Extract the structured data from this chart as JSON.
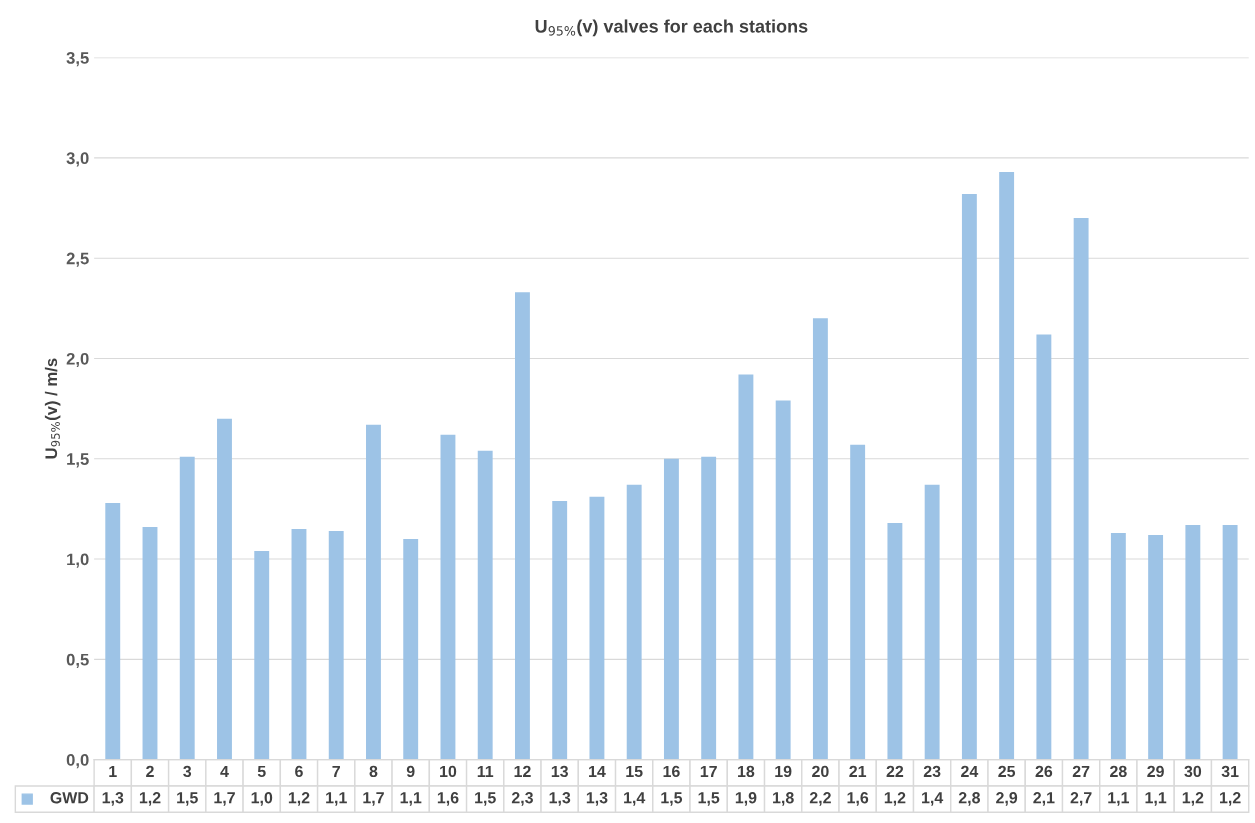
{
  "chart_data": {
    "type": "bar",
    "title": "U$_{95%}$(v) valves for each stations",
    "ylabel": "U$_{95%}$(v) / m/s",
    "categories": [
      "1",
      "2",
      "3",
      "4",
      "5",
      "6",
      "7",
      "8",
      "9",
      "10",
      "11",
      "12",
      "13",
      "14",
      "15",
      "16",
      "17",
      "18",
      "19",
      "20",
      "21",
      "22",
      "23",
      "24",
      "25",
      "26",
      "27",
      "28",
      "29",
      "30",
      "31"
    ],
    "series": [
      {
        "name": "GWD",
        "color": "#9dc3e6",
        "values": [
          1.28,
          1.16,
          1.51,
          1.7,
          1.04,
          1.15,
          1.14,
          1.67,
          1.1,
          1.62,
          1.54,
          2.33,
          1.29,
          1.31,
          1.37,
          1.5,
          1.51,
          1.92,
          1.79,
          2.2,
          1.57,
          1.18,
          1.37,
          2.82,
          2.93,
          2.12,
          2.7,
          1.13,
          1.12,
          1.17,
          1.17
        ],
        "value_labels": [
          "1,3",
          "1,2",
          "1,5",
          "1,7",
          "1,0",
          "1,2",
          "1,1",
          "1,7",
          "1,1",
          "1,6",
          "1,5",
          "2,3",
          "1,3",
          "1,3",
          "1,4",
          "1,5",
          "1,5",
          "1,9",
          "1,8",
          "2,2",
          "1,6",
          "1,2",
          "1,4",
          "2,8",
          "2,9",
          "2,1",
          "2,7",
          "1,1",
          "1,1",
          "1,2",
          "1,2"
        ]
      }
    ],
    "ylim": [
      0,
      3.5
    ],
    "yticks": [
      {
        "value": 0,
        "label": "0,0"
      },
      {
        "value": 0.5,
        "label": "0,5"
      },
      {
        "value": 1,
        "label": "1,0"
      },
      {
        "value": 1.5,
        "label": "1,5"
      },
      {
        "value": 2,
        "label": "2,0"
      },
      {
        "value": 2.5,
        "label": "2,5"
      },
      {
        "value": 3,
        "label": "3,0"
      },
      {
        "value": 3.5,
        "label": "3,5"
      }
    ],
    "grid": "y",
    "legend": "bottom left"
  }
}
